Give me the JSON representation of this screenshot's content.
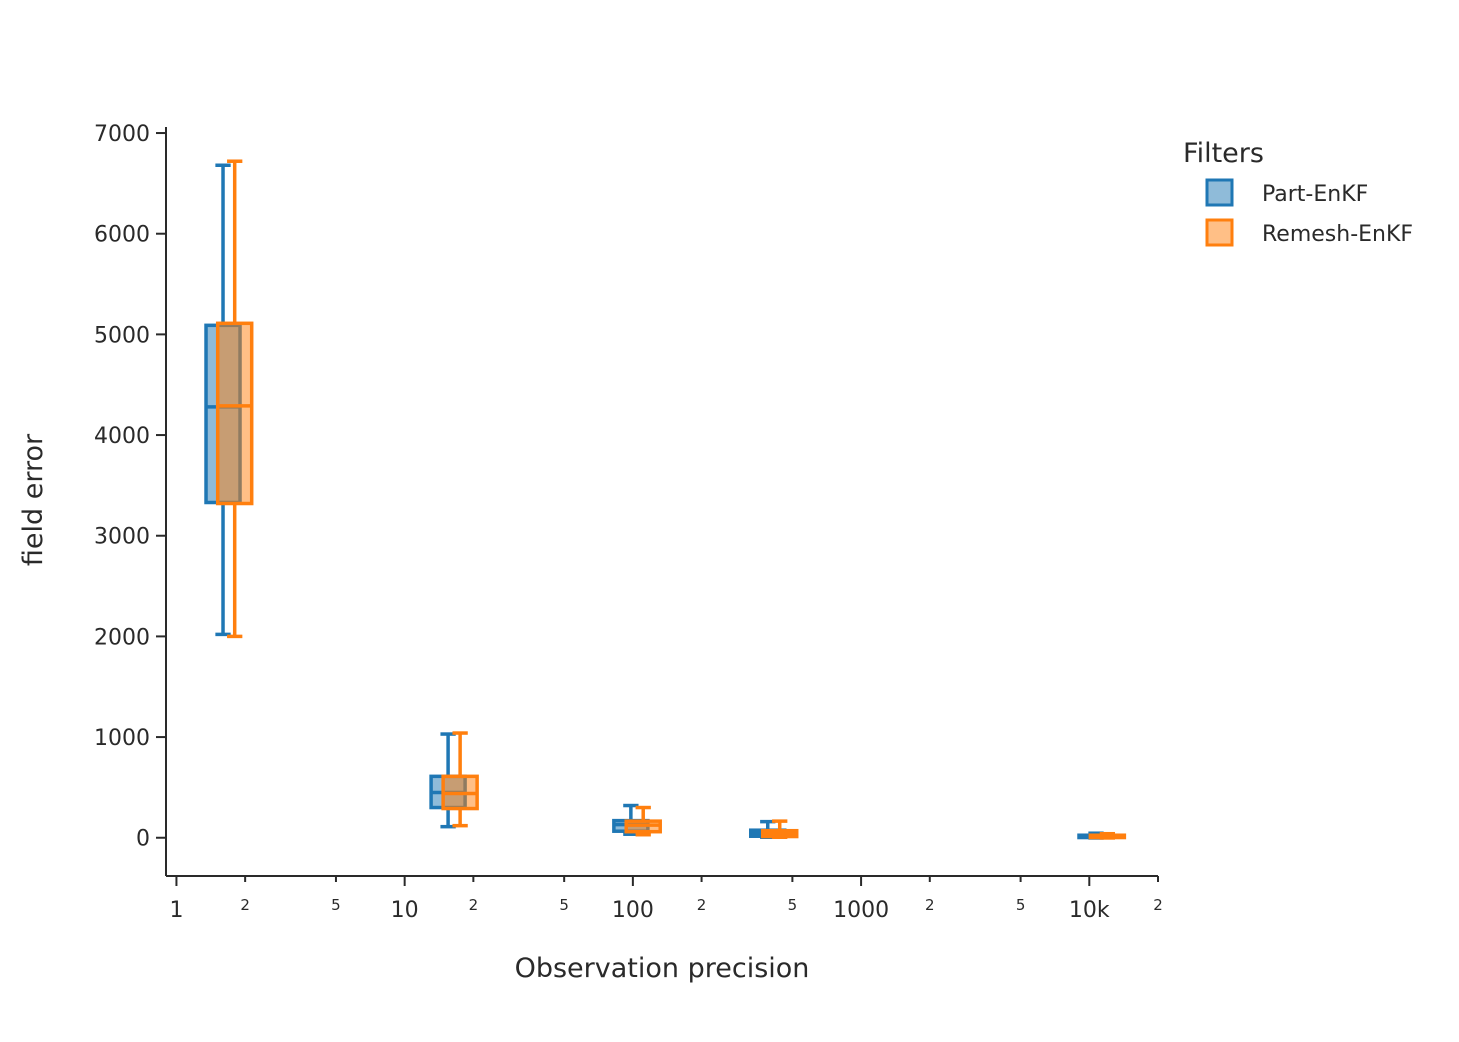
{
  "chart_data": {
    "type": "box",
    "xlabel": "Observation precision",
    "ylabel": "field error",
    "xscale": "log",
    "xlim": [
      0.9,
      20000
    ],
    "ylim": [
      -380,
      7060
    ],
    "y_ticks": [
      0,
      1000,
      2000,
      3000,
      4000,
      5000,
      6000,
      7000
    ],
    "x_major_ticks": [
      {
        "value": 1,
        "label": "1"
      },
      {
        "value": 10,
        "label": "10"
      },
      {
        "value": 100,
        "label": "100"
      },
      {
        "value": 1000,
        "label": "1000"
      },
      {
        "value": 10000,
        "label": "10k"
      }
    ],
    "x_minor_ticks": [
      {
        "value": 2,
        "label": "2"
      },
      {
        "value": 5,
        "label": "5"
      },
      {
        "value": 20,
        "label": "2"
      },
      {
        "value": 50,
        "label": "5"
      },
      {
        "value": 200,
        "label": "2"
      },
      {
        "value": 500,
        "label": "5"
      },
      {
        "value": 2000,
        "label": "2"
      },
      {
        "value": 5000,
        "label": "5"
      },
      {
        "value": 20000,
        "label": "2"
      }
    ],
    "legend": {
      "title": "Filters",
      "position": "top-right"
    },
    "series": [
      {
        "name": "Part-EnKF",
        "color": "#1f77b4",
        "fill": "rgba(31,119,180,0.5)",
        "boxes": [
          {
            "x": 1.6,
            "min": 2020,
            "q1": 3330,
            "median": 4280,
            "q3": 5090,
            "max": 6680
          },
          {
            "x": 15.5,
            "min": 110,
            "q1": 300,
            "median": 450,
            "q3": 610,
            "max": 1030
          },
          {
            "x": 98,
            "min": 35,
            "q1": 65,
            "median": 130,
            "q3": 170,
            "max": 320
          },
          {
            "x": 390,
            "min": 5,
            "q1": 15,
            "median": 45,
            "q3": 75,
            "max": 160
          },
          {
            "x": 10700,
            "min": -2,
            "q1": 2,
            "median": 10,
            "q3": 25,
            "max": 45
          }
        ]
      },
      {
        "name": "Remesh-EnKF",
        "color": "#ff7f0e",
        "fill": "rgba(255,127,14,0.5)",
        "boxes": [
          {
            "x": 1.8,
            "min": 2000,
            "q1": 3320,
            "median": 4290,
            "q3": 5110,
            "max": 6720
          },
          {
            "x": 17.5,
            "min": 120,
            "q1": 290,
            "median": 440,
            "q3": 610,
            "max": 1040
          },
          {
            "x": 111,
            "min": 30,
            "q1": 60,
            "median": 125,
            "q3": 165,
            "max": 300
          },
          {
            "x": 440,
            "min": 5,
            "q1": 12,
            "median": 40,
            "q3": 70,
            "max": 165
          },
          {
            "x": 12000,
            "min": -2,
            "q1": 2,
            "median": 10,
            "q3": 25,
            "max": 40
          }
        ]
      }
    ]
  }
}
